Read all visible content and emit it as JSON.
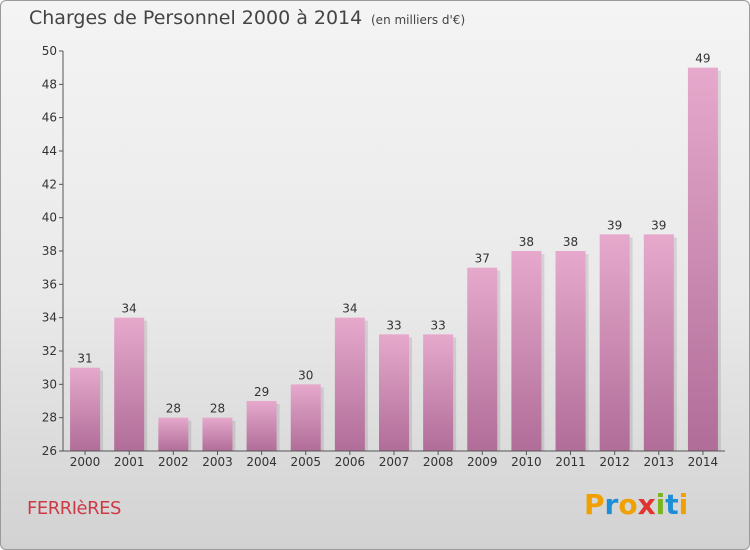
{
  "header": {
    "title": "Charges de Personnel 2000 à 2014",
    "subtitle": "(en milliers d'€)"
  },
  "footer": {
    "commune": "FERRIèRES",
    "logo": "Proxiti"
  },
  "colors": {
    "bar_top": "#e6a9cc",
    "bar_bottom": "#b06d98",
    "title": "#444444",
    "commune": "#cc3a45",
    "logo_letters": [
      "#f0a000",
      "#1e8fd5",
      "#f0a000",
      "#e2342e",
      "#7ab51d",
      "#1e8fd5",
      "#f0a000"
    ]
  },
  "chart_data": {
    "type": "bar",
    "categories": [
      "2000",
      "2001",
      "2002",
      "2003",
      "2004",
      "2005",
      "2006",
      "2007",
      "2008",
      "2009",
      "2010",
      "2011",
      "2012",
      "2013",
      "2014"
    ],
    "values": [
      31,
      34,
      28,
      28,
      29,
      30,
      34,
      33,
      33,
      37,
      38,
      38,
      39,
      39,
      49
    ],
    "ylim": [
      26,
      50
    ],
    "yticks": [
      26,
      28,
      30,
      32,
      34,
      36,
      38,
      40,
      42,
      44,
      46,
      48,
      50
    ],
    "grid": false,
    "legend": "none"
  }
}
